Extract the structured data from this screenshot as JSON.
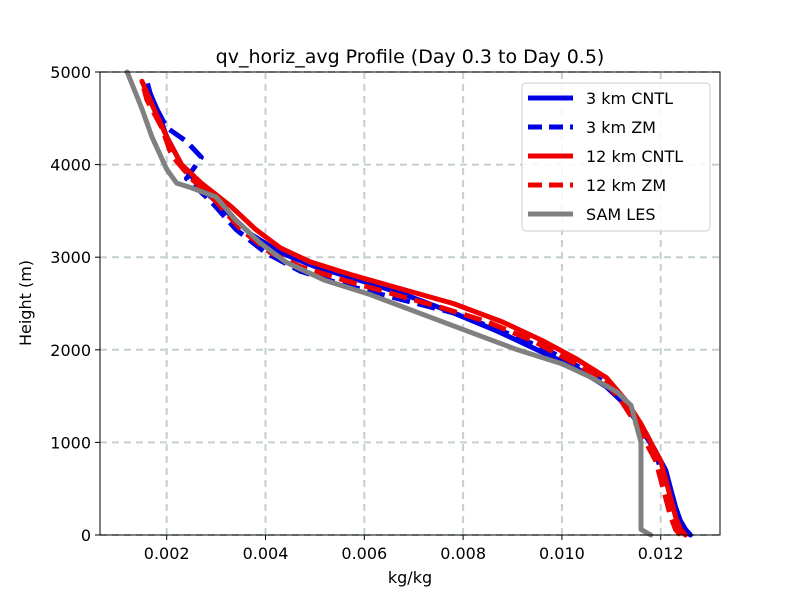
{
  "chart_data": {
    "type": "line",
    "title": "qv_horiz_avg Profile (Day 0.3 to Day 0.5)",
    "xlabel": "kg/kg",
    "ylabel": "Height (m)",
    "xlim": [
      0.00065,
      0.0132
    ],
    "ylim": [
      0,
      5000
    ],
    "xticks": [
      0.002,
      0.004,
      0.006,
      0.008,
      0.01,
      0.012
    ],
    "xtick_labels": [
      "0.002",
      "0.004",
      "0.006",
      "0.008",
      "0.010",
      "0.012"
    ],
    "yticks": [
      0,
      1000,
      2000,
      3000,
      4000,
      5000
    ],
    "ytick_labels": [
      "0",
      "1000",
      "2000",
      "3000",
      "4000",
      "5000"
    ],
    "grid": true,
    "legend_position": "top-right",
    "series": [
      {
        "name": "3 km CNTL",
        "color": "#0000e6",
        "dash": "solid",
        "points": [
          [
            0.0126,
            0
          ],
          [
            0.0125,
            60
          ],
          [
            0.0124,
            150
          ],
          [
            0.0123,
            300
          ],
          [
            0.0122,
            500
          ],
          [
            0.0121,
            700
          ],
          [
            0.0119,
            900
          ],
          [
            0.0116,
            1150
          ],
          [
            0.0113,
            1400
          ],
          [
            0.0109,
            1600
          ],
          [
            0.0103,
            1800
          ],
          [
            0.0095,
            2000
          ],
          [
            0.0087,
            2200
          ],
          [
            0.0078,
            2400
          ],
          [
            0.0068,
            2600
          ],
          [
            0.0059,
            2750
          ],
          [
            0.005,
            2900
          ],
          [
            0.0043,
            3050
          ],
          [
            0.0037,
            3250
          ],
          [
            0.0032,
            3500
          ],
          [
            0.0027,
            3750
          ],
          [
            0.0023,
            4000
          ],
          [
            0.002,
            4300
          ],
          [
            0.0018,
            4600
          ],
          [
            0.0016,
            4850
          ]
        ]
      },
      {
        "name": "3 km ZM",
        "color": "#0000e6",
        "dash": "dashed",
        "points": [
          [
            0.0126,
            0
          ],
          [
            0.0125,
            60
          ],
          [
            0.0124,
            150
          ],
          [
            0.0123,
            300
          ],
          [
            0.0122,
            500
          ],
          [
            0.012,
            700
          ],
          [
            0.0119,
            900
          ],
          [
            0.0117,
            1100
          ],
          [
            0.0114,
            1350
          ],
          [
            0.011,
            1600
          ],
          [
            0.0104,
            1800
          ],
          [
            0.0097,
            2000
          ],
          [
            0.0088,
            2200
          ],
          [
            0.0078,
            2400
          ],
          [
            0.0067,
            2550
          ],
          [
            0.0056,
            2700
          ],
          [
            0.0047,
            2850
          ],
          [
            0.004,
            3050
          ],
          [
            0.0034,
            3300
          ],
          [
            0.0029,
            3600
          ],
          [
            0.0024,
            3850
          ],
          [
            0.0026,
            4000
          ],
          [
            0.0027,
            4080
          ],
          [
            0.0024,
            4250
          ],
          [
            0.002,
            4400
          ],
          [
            0.0017,
            4700
          ],
          [
            0.0016,
            4900
          ]
        ]
      },
      {
        "name": "12 km CNTL",
        "color": "#ee0000",
        "dash": "solid",
        "points": [
          [
            0.0125,
            0
          ],
          [
            0.0124,
            60
          ],
          [
            0.0123,
            200
          ],
          [
            0.0122,
            400
          ],
          [
            0.0121,
            600
          ],
          [
            0.012,
            800
          ],
          [
            0.0118,
            1000
          ],
          [
            0.0116,
            1200
          ],
          [
            0.0113,
            1450
          ],
          [
            0.0109,
            1700
          ],
          [
            0.0103,
            1900
          ],
          [
            0.0096,
            2100
          ],
          [
            0.0088,
            2300
          ],
          [
            0.0078,
            2500
          ],
          [
            0.0068,
            2650
          ],
          [
            0.0058,
            2800
          ],
          [
            0.0049,
            2950
          ],
          [
            0.0043,
            3100
          ],
          [
            0.0038,
            3300
          ],
          [
            0.0033,
            3550
          ],
          [
            0.0027,
            3800
          ],
          [
            0.0023,
            4000
          ],
          [
            0.002,
            4300
          ],
          [
            0.0017,
            4650
          ],
          [
            0.0015,
            4900
          ]
        ]
      },
      {
        "name": "12 km ZM",
        "color": "#ee0000",
        "dash": "dashed",
        "points": [
          [
            0.0124,
            0
          ],
          [
            0.0123,
            60
          ],
          [
            0.0122,
            200
          ],
          [
            0.0121,
            400
          ],
          [
            0.012,
            600
          ],
          [
            0.0119,
            800
          ],
          [
            0.0117,
            1000
          ],
          [
            0.0115,
            1200
          ],
          [
            0.0112,
            1450
          ],
          [
            0.0108,
            1700
          ],
          [
            0.0101,
            1900
          ],
          [
            0.0094,
            2100
          ],
          [
            0.0085,
            2300
          ],
          [
            0.0076,
            2450
          ],
          [
            0.0066,
            2600
          ],
          [
            0.0056,
            2750
          ],
          [
            0.0047,
            2900
          ],
          [
            0.0041,
            3050
          ],
          [
            0.0035,
            3300
          ],
          [
            0.003,
            3600
          ],
          [
            0.0025,
            3850
          ],
          [
            0.0021,
            4100
          ],
          [
            0.0019,
            4400
          ],
          [
            0.0016,
            4700
          ],
          [
            0.0015,
            4900
          ]
        ]
      },
      {
        "name": "SAM LES",
        "color": "#808080",
        "dash": "solid",
        "points": [
          [
            0.0118,
            0
          ],
          [
            0.0116,
            60
          ],
          [
            0.0116,
            200
          ],
          [
            0.0116,
            500
          ],
          [
            0.0116,
            800
          ],
          [
            0.0116,
            1000
          ],
          [
            0.0115,
            1200
          ],
          [
            0.0114,
            1400
          ],
          [
            0.0111,
            1550
          ],
          [
            0.0106,
            1700
          ],
          [
            0.01,
            1850
          ],
          [
            0.0091,
            2000
          ],
          [
            0.0081,
            2200
          ],
          [
            0.0071,
            2400
          ],
          [
            0.0061,
            2600
          ],
          [
            0.0052,
            2750
          ],
          [
            0.0044,
            2950
          ],
          [
            0.0039,
            3150
          ],
          [
            0.0034,
            3400
          ],
          [
            0.003,
            3650
          ],
          [
            0.0025,
            3750
          ],
          [
            0.0022,
            3800
          ],
          [
            0.002,
            3950
          ],
          [
            0.0017,
            4300
          ],
          [
            0.0015,
            4600
          ],
          [
            0.0012,
            5000
          ]
        ]
      }
    ]
  }
}
